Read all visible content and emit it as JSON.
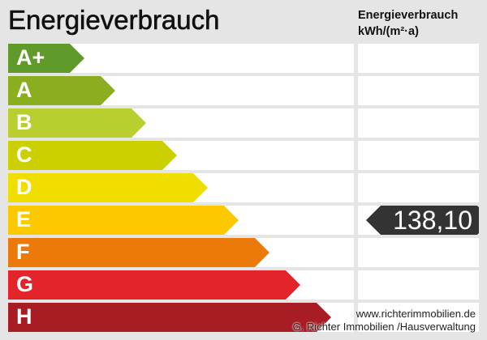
{
  "title": "Energieverbrauch",
  "column_header": {
    "line1": "Energieverbrauch",
    "line2": "kWh/(m²·a)"
  },
  "classes": [
    {
      "label": "A+",
      "color": "#5f9a2a"
    },
    {
      "label": "A",
      "color": "#8aae1f"
    },
    {
      "label": "B",
      "color": "#b9cf30"
    },
    {
      "label": "C",
      "color": "#ccd000"
    },
    {
      "label": "D",
      "color": "#f0de00"
    },
    {
      "label": "E",
      "color": "#fcc800"
    },
    {
      "label": "F",
      "color": "#ec7a0a"
    },
    {
      "label": "G",
      "color": "#e3242b"
    },
    {
      "label": "H",
      "color": "#a81c24"
    }
  ],
  "value": {
    "text": "138,10",
    "class": "E"
  },
  "watermark": {
    "line1": "www.richterimmobilien.de",
    "line2": "G. Richter Immobilien /Hausverwaltung"
  }
}
